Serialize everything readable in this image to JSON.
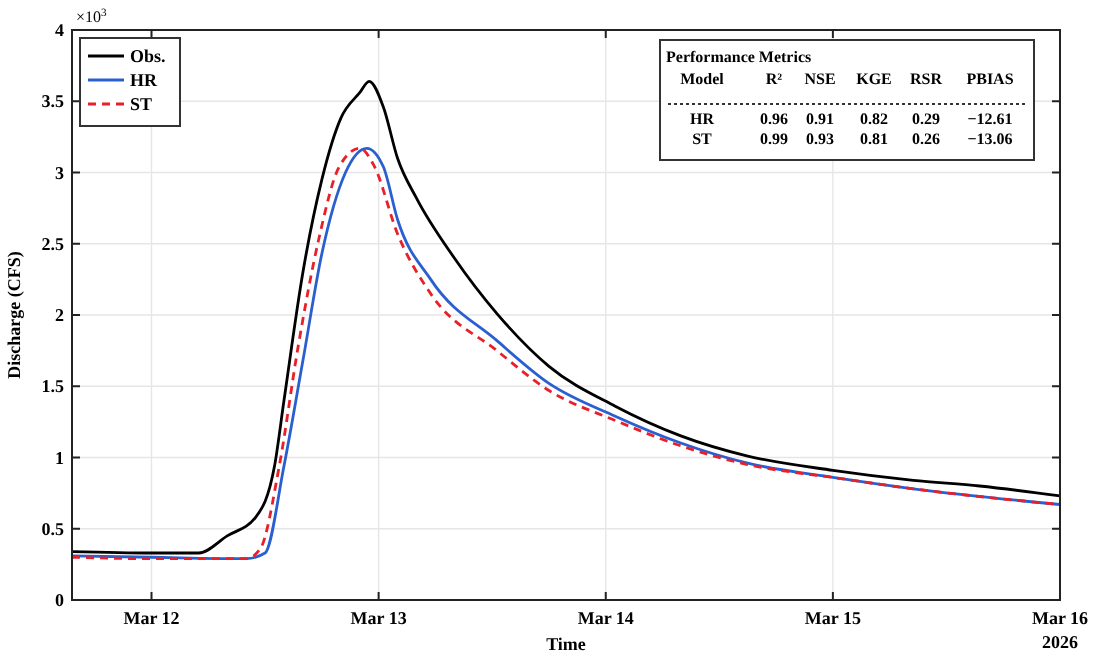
{
  "chart_data": {
    "type": "line",
    "xlabel": "Time",
    "ylabel": "Discharge (CFS)",
    "xlim": [
      "2026-03-11T15:36",
      "2026-03-16"
    ],
    "xticks": [
      {
        "value": "2026-03-12",
        "label": "Mar 12"
      },
      {
        "value": "2026-03-13",
        "label": "Mar 13"
      },
      {
        "value": "2026-03-14",
        "label": "Mar 14"
      },
      {
        "value": "2026-03-15",
        "label": "Mar 15"
      },
      {
        "value": "2026-03-16",
        "label": "Mar 16"
      }
    ],
    "ylim": [
      0,
      4
    ],
    "yticks": [
      0,
      0.5,
      1,
      1.5,
      2,
      2.5,
      3,
      3.5,
      4
    ],
    "grid": true,
    "legend": "top left",
    "series": [
      {
        "name": "Obs.",
        "color": "#000000",
        "line_style": "solid",
        "x": [
          "2026-03-11T15:36",
          "2026-03-12T00:00",
          "2026-03-12T05:00",
          "2026-03-12T08:00",
          "2026-03-12T11:00",
          "2026-03-12T13:00",
          "2026-03-12T14:00",
          "2026-03-12T16:00",
          "2026-03-12T18:00",
          "2026-03-12T20:00",
          "2026-03-12T22:00",
          "2026-03-12T23:00",
          "2026-03-13T00:30",
          "2026-03-13T02:00",
          "2026-03-13T04:00",
          "2026-03-13T08:00",
          "2026-03-13T12:30",
          "2026-03-13T18:00",
          "2026-03-14T01:00",
          "2026-03-14T08:00",
          "2026-03-14T15:00",
          "2026-03-15T00:00",
          "2026-03-15T08:30",
          "2026-03-15T15:30",
          "2026-03-16T00:00"
        ],
        "values": [
          0.34,
          0.33,
          0.33,
          0.45,
          0.58,
          0.94,
          1.4,
          2.3,
          2.95,
          3.38,
          3.56,
          3.64,
          3.46,
          3.1,
          2.82,
          2.4,
          2.01,
          1.64,
          1.36,
          1.15,
          1.01,
          0.91,
          0.84,
          0.8,
          0.73
        ]
      },
      {
        "name": "HR",
        "color": "#2a5fd0",
        "line_style": "solid",
        "x": [
          "2026-03-11T15:36",
          "2026-03-12T00:00",
          "2026-03-12T10:00",
          "2026-03-12T12:00",
          "2026-03-12T14:00",
          "2026-03-12T16:00",
          "2026-03-12T18:00",
          "2026-03-12T20:30",
          "2026-03-12T22:45",
          "2026-03-13T00:30",
          "2026-03-13T02:00",
          "2026-03-13T05:30",
          "2026-03-13T12:30",
          "2026-03-13T18:00",
          "2026-03-14T01:00",
          "2026-03-14T08:00",
          "2026-03-14T15:00",
          "2026-03-15T00:00",
          "2026-03-15T08:30",
          "2026-03-16T00:00"
        ],
        "values": [
          0.31,
          0.3,
          0.29,
          0.33,
          0.94,
          1.68,
          2.43,
          3.0,
          3.17,
          3.04,
          2.67,
          2.25,
          1.82,
          1.52,
          1.29,
          1.1,
          0.96,
          0.86,
          0.78,
          0.67
        ]
      },
      {
        "name": "ST",
        "color": "#e8202a",
        "line_style": "dashed",
        "x": [
          "2026-03-11T15:36",
          "2026-03-12T00:00",
          "2026-03-12T10:00",
          "2026-03-12T11:30",
          "2026-03-12T13:30",
          "2026-03-12T15:30",
          "2026-03-12T17:40",
          "2026-03-12T19:50",
          "2026-03-12T22:00",
          "2026-03-12T23:30",
          "2026-03-13T02:00",
          "2026-03-13T05:30",
          "2026-03-13T12:30",
          "2026-03-13T18:00",
          "2026-03-14T01:00",
          "2026-03-14T08:00",
          "2026-03-14T15:00",
          "2026-03-15T00:00",
          "2026-03-15T08:30",
          "2026-03-16T00:00"
        ],
        "values": [
          0.3,
          0.29,
          0.29,
          0.36,
          0.94,
          1.78,
          2.53,
          3.04,
          3.17,
          3.05,
          2.57,
          2.15,
          1.75,
          1.47,
          1.26,
          1.08,
          0.95,
          0.86,
          0.78,
          0.67
        ]
      }
    ],
    "annotations": [
      "×10$^{3}$",
      "2026",
      "Performance Metrics",
      "Model",
      "R²",
      "NSE",
      "KGE",
      "RSR",
      "PBIAS",
      "HR",
      "0.96",
      "0.91",
      "0.82",
      "0.29",
      "−12.61",
      "ST",
      "0.99",
      "0.93",
      "0.81",
      "0.26",
      "−13.06"
    ]
  }
}
